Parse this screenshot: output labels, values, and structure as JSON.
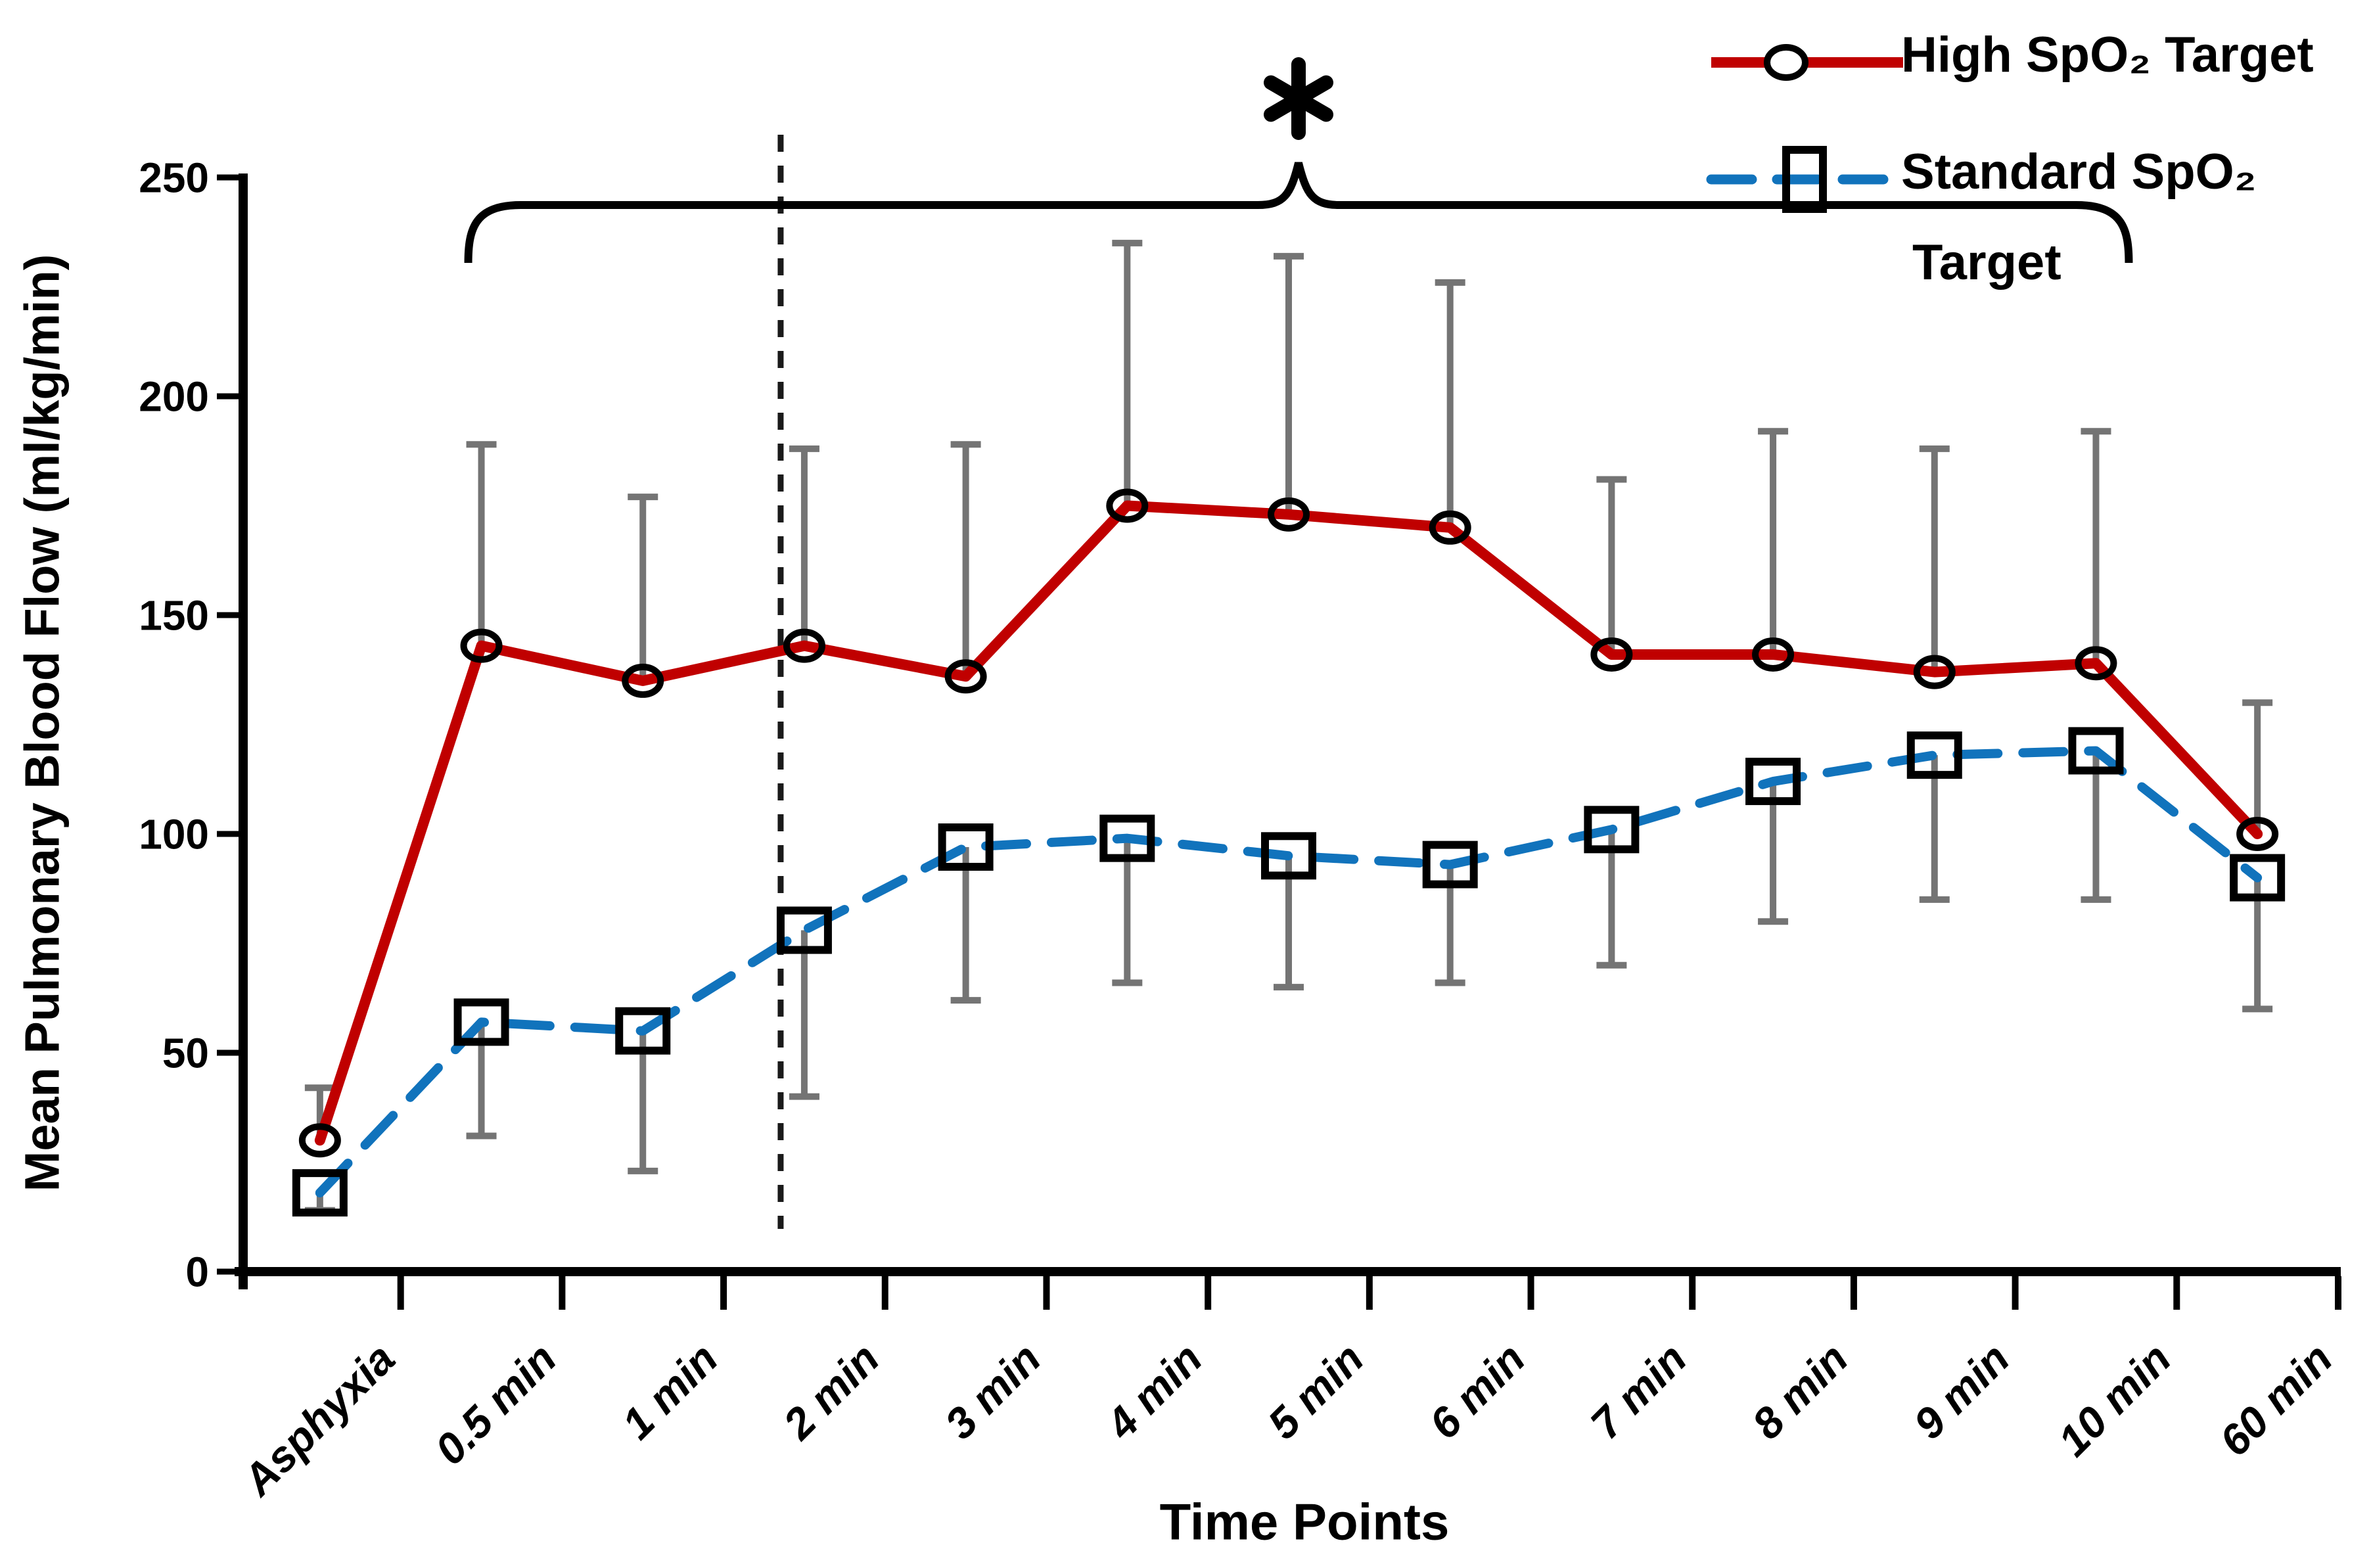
{
  "figure": {
    "kind": "scientific line chart with error bars",
    "background": "#ffffff"
  },
  "chart_data": {
    "type": "line",
    "title": "",
    "xlabel": "Time Points",
    "ylabel": "Mean Pulmonary Blood Flow (ml/kg/min)",
    "ylim": [
      0,
      250
    ],
    "y_ticks": [
      0,
      50,
      100,
      150,
      200,
      250
    ],
    "y_tick_labels": [
      "0",
      "50",
      "100",
      "150",
      "200",
      "250"
    ],
    "grid": "off",
    "legend_position": "top-right",
    "categories": [
      "Asphyxia",
      "0.5 min",
      "1 min",
      "2 min",
      "3 min",
      "4 min",
      "5 min",
      "6 min",
      "7 min",
      "8 min",
      "9 min",
      "10 min",
      "60 min"
    ],
    "series": [
      {
        "name": "High SpO₂ Target",
        "color": "#C00000",
        "line_style": "solid",
        "marker": "open-circle",
        "marker_color": "#000000",
        "values": [
          30,
          143,
          135,
          143,
          136,
          175,
          173,
          170,
          141,
          141,
          137,
          139,
          100
        ],
        "error_up": [
          12,
          46,
          42,
          45,
          53,
          60,
          59,
          56,
          40,
          51,
          51,
          53,
          30
        ],
        "error_down": [
          0,
          0,
          0,
          0,
          0,
          0,
          0,
          0,
          0,
          0,
          0,
          0,
          0
        ],
        "error_color": "#747474"
      },
      {
        "name": "Standard SpO₂ Target",
        "color": "#1173BC",
        "line_style": "dashed",
        "marker": "open-square",
        "marker_color": "#000000",
        "values": [
          18,
          57,
          55,
          78,
          97,
          99,
          95,
          93,
          101,
          112,
          118,
          119,
          90
        ],
        "error_up": [
          0,
          0,
          0,
          0,
          0,
          0,
          0,
          0,
          0,
          0,
          0,
          0,
          0
        ],
        "error_down": [
          4,
          26,
          32,
          38,
          35,
          33,
          30,
          27,
          31,
          32,
          33,
          34,
          30
        ],
        "error_color": "#747474"
      }
    ],
    "annotations": {
      "significance_symbol": "*",
      "significance_bracket": {
        "from_category": "0.5 min",
        "to_category": "10 min",
        "style": "curly bracket above plot with center peak under asterisk"
      },
      "dashed_vertical_line": {
        "between": [
          "1 min",
          "2 min"
        ],
        "note": "vertical dashed reference line just before the 2 min time point"
      }
    }
  },
  "legend": {
    "high_label": "High SpO₂ Target",
    "standard_label_line1": "Standard SpO₂",
    "standard_label_line2": "Target"
  },
  "axis_titles": {
    "y": "Mean Pulmonary Blood Flow (ml/kg/min)",
    "x": "Time Points"
  },
  "colors": {
    "high_series": "#C00000",
    "standard_series": "#1173BC",
    "error_bars": "#747474",
    "axes_and_text": "#000000"
  }
}
